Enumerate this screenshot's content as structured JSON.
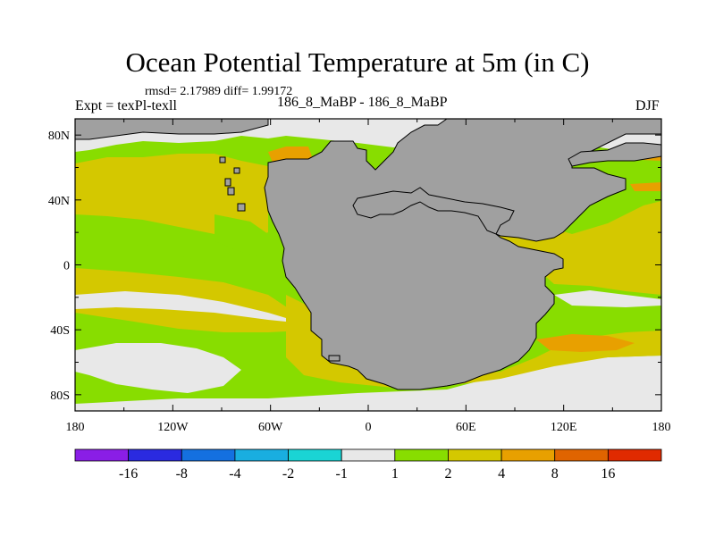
{
  "chart_data": {
    "type": "contour-map",
    "title": "Ocean Potential Temperature at 5m (in C)",
    "stats": "rmsd= 2.17989 diff= 1.99172",
    "left_label": "Expt = texPl-texll",
    "center_label": "186_8_MaBP - 186_8_MaBP",
    "right_label": "DJF",
    "x_ticks": [
      {
        "value": -180,
        "label": "180"
      },
      {
        "value": -120,
        "label": "120W"
      },
      {
        "value": -60,
        "label": "60W"
      },
      {
        "value": 0,
        "label": "0"
      },
      {
        "value": 60,
        "label": "60E"
      },
      {
        "value": 120,
        "label": "120E"
      },
      {
        "value": 180,
        "label": "180"
      }
    ],
    "y_ticks": [
      {
        "value": 80,
        "label": "80N"
      },
      {
        "value": 40,
        "label": "40N"
      },
      {
        "value": 0,
        "label": "0"
      },
      {
        "value": -40,
        "label": "40S"
      },
      {
        "value": -80,
        "label": "80S"
      }
    ],
    "xlim": [
      -180,
      180
    ],
    "ylim": [
      -90,
      90
    ],
    "colorbar": {
      "levels": [
        "-16",
        "-8",
        "-4",
        "-2",
        "-1",
        "1",
        "2",
        "4",
        "8",
        "16"
      ],
      "colors": [
        "#8a1ee6",
        "#2a2ae0",
        "#1470e0",
        "#19aee0",
        "#1ad4d4",
        "#e8e8e8",
        "#88dd00",
        "#d4c800",
        "#e8a000",
        "#e06400",
        "#e02a00"
      ]
    },
    "land_color": "#a0a0a0",
    "regions": [
      {
        "name": "high-latitude near-zero band",
        "range": "-1 to 1",
        "color": "#e8e8e8"
      },
      {
        "name": "most of ocean",
        "range": "1 to 2",
        "color": "#88dd00"
      },
      {
        "name": "mid-latitude warming",
        "range": "2 to 4",
        "color": "#d4c800"
      },
      {
        "name": "warm patches (north of Tethys, SE Pangea)",
        "range": "4 to 8",
        "color": "#e8a000"
      }
    ]
  }
}
